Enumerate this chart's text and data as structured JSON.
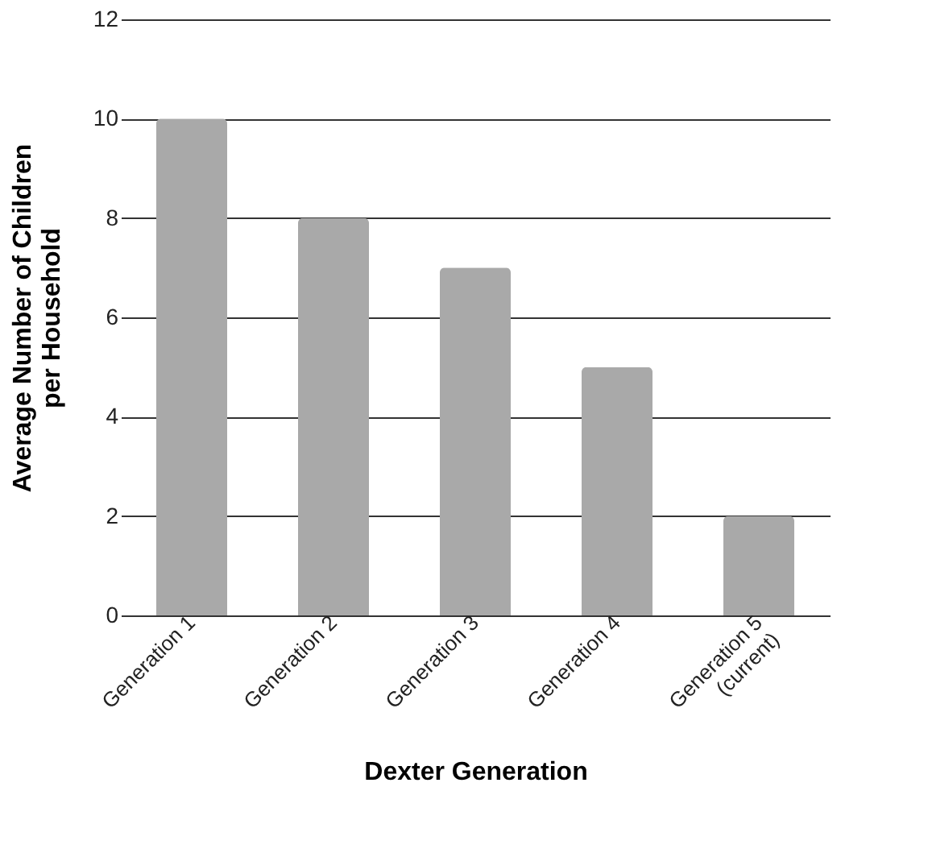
{
  "chart_data": {
    "type": "bar",
    "xlabel": "Dexter Generation",
    "ylabel": "Average Number of Children\nper Household",
    "categories": [
      "Generation 1",
      "Generation 2",
      "Generation 3",
      "Generation 4",
      "Generation 5\n(current)"
    ],
    "values": [
      10,
      8,
      7,
      5,
      2
    ],
    "color": "#a9a9a9",
    "ylim": [
      0,
      12
    ],
    "yticks": [
      0,
      2,
      4,
      6,
      8,
      10,
      12
    ],
    "grid": "y"
  }
}
